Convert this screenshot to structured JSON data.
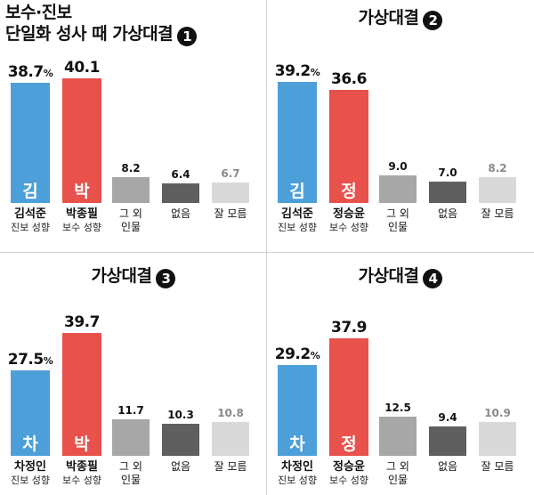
{
  "panels": [
    {
      "title_lines": [
        "보수·진보",
        "단일화 성사 때 가상대결"
      ],
      "badge": "1",
      "title_align": "left",
      "bars": [
        {
          "value": "38.7",
          "pct": "%",
          "color": "#4d9fd9",
          "initial": "김",
          "name": "김석준",
          "sub": "진보 성향",
          "style": "big"
        },
        {
          "value": "40.1",
          "pct": "",
          "color": "#e8514c",
          "initial": "박",
          "name": "박종필",
          "sub": "보수 성향",
          "style": "big"
        },
        {
          "value": "8.2",
          "pct": "",
          "color": "#a7a7a7",
          "initial": "",
          "name": "",
          "sub": "",
          "lines": [
            "그 외",
            "인물"
          ],
          "style": "small"
        },
        {
          "value": "6.4",
          "pct": "",
          "color": "#5f5f5f",
          "initial": "",
          "name": "",
          "sub": "",
          "lines": [
            "없음"
          ],
          "style": "small"
        },
        {
          "value": "6.7",
          "pct": "",
          "color": "#d9d9d9",
          "initial": "",
          "name": "",
          "sub": "",
          "lines": [
            "잘 모름"
          ],
          "style": "small",
          "valColor": "#8a8a8a"
        }
      ]
    },
    {
      "title_lines": [
        "가상대결"
      ],
      "badge": "2",
      "title_align": "center",
      "bars": [
        {
          "value": "39.2",
          "pct": "%",
          "color": "#4d9fd9",
          "initial": "김",
          "name": "김석준",
          "sub": "진보 성향",
          "style": "big"
        },
        {
          "value": "36.6",
          "pct": "",
          "color": "#e8514c",
          "initial": "정",
          "name": "정승윤",
          "sub": "보수 성향",
          "style": "big"
        },
        {
          "value": "9.0",
          "pct": "",
          "color": "#a7a7a7",
          "initial": "",
          "name": "",
          "sub": "",
          "lines": [
            "그 외",
            "인물"
          ],
          "style": "small"
        },
        {
          "value": "7.0",
          "pct": "",
          "color": "#5f5f5f",
          "initial": "",
          "name": "",
          "sub": "",
          "lines": [
            "없음"
          ],
          "style": "small"
        },
        {
          "value": "8.2",
          "pct": "",
          "color": "#d9d9d9",
          "initial": "",
          "name": "",
          "sub": "",
          "lines": [
            "잘 모름"
          ],
          "style": "small",
          "valColor": "#8a8a8a"
        }
      ]
    },
    {
      "title_lines": [
        "가상대결"
      ],
      "badge": "3",
      "title_align": "center",
      "bars": [
        {
          "value": "27.5",
          "pct": "%",
          "color": "#4d9fd9",
          "initial": "차",
          "name": "차정인",
          "sub": "진보 성향",
          "style": "big"
        },
        {
          "value": "39.7",
          "pct": "",
          "color": "#e8514c",
          "initial": "박",
          "name": "박종필",
          "sub": "보수 성향",
          "style": "big"
        },
        {
          "value": "11.7",
          "pct": "",
          "color": "#a7a7a7",
          "initial": "",
          "name": "",
          "sub": "",
          "lines": [
            "그 외",
            "인물"
          ],
          "style": "small"
        },
        {
          "value": "10.3",
          "pct": "",
          "color": "#5f5f5f",
          "initial": "",
          "name": "",
          "sub": "",
          "lines": [
            "없음"
          ],
          "style": "small"
        },
        {
          "value": "10.8",
          "pct": "",
          "color": "#d9d9d9",
          "initial": "",
          "name": "",
          "sub": "",
          "lines": [
            "잘 모름"
          ],
          "style": "small",
          "valColor": "#8a8a8a"
        }
      ]
    },
    {
      "title_lines": [
        "가상대결"
      ],
      "badge": "4",
      "title_align": "center",
      "bars": [
        {
          "value": "29.2",
          "pct": "%",
          "color": "#4d9fd9",
          "initial": "차",
          "name": "차정인",
          "sub": "진보 성향",
          "style": "big"
        },
        {
          "value": "37.9",
          "pct": "",
          "color": "#e8514c",
          "initial": "정",
          "name": "정승윤",
          "sub": "보수 성향",
          "style": "big"
        },
        {
          "value": "12.5",
          "pct": "",
          "color": "#a7a7a7",
          "initial": "",
          "name": "",
          "sub": "",
          "lines": [
            "그 외",
            "인물"
          ],
          "style": "small"
        },
        {
          "value": "9.4",
          "pct": "",
          "color": "#5f5f5f",
          "initial": "",
          "name": "",
          "sub": "",
          "lines": [
            "없음"
          ],
          "style": "small"
        },
        {
          "value": "10.9",
          "pct": "",
          "color": "#d9d9d9",
          "initial": "",
          "name": "",
          "sub": "",
          "lines": [
            "잘 모름"
          ],
          "style": "small",
          "valColor": "#8a8a8a"
        }
      ]
    }
  ],
  "chart_data": [
    {
      "type": "bar",
      "title": "보수·진보 단일화 성사 때 가상대결 1",
      "categories": [
        "김석준 진보 성향",
        "박종필 보수 성향",
        "그 외 인물",
        "없음",
        "잘 모름"
      ],
      "values": [
        38.7,
        40.1,
        8.2,
        6.4,
        6.7
      ],
      "unit": "%"
    },
    {
      "type": "bar",
      "title": "가상대결 2",
      "categories": [
        "김석준 진보 성향",
        "정승윤 보수 성향",
        "그 외 인물",
        "없음",
        "잘 모름"
      ],
      "values": [
        39.2,
        36.6,
        9.0,
        7.0,
        8.2
      ],
      "unit": "%"
    },
    {
      "type": "bar",
      "title": "가상대결 3",
      "categories": [
        "차정인 진보 성향",
        "박종필 보수 성향",
        "그 외 인물",
        "없음",
        "잘 모름"
      ],
      "values": [
        27.5,
        39.7,
        11.7,
        10.3,
        10.8
      ],
      "unit": "%"
    },
    {
      "type": "bar",
      "title": "가상대결 4",
      "categories": [
        "차정인 진보 성향",
        "정승윤 보수 성향",
        "그 외 인물",
        "없음",
        "잘 모름"
      ],
      "values": [
        29.2,
        37.9,
        12.5,
        9.4,
        10.9
      ],
      "unit": "%"
    }
  ]
}
